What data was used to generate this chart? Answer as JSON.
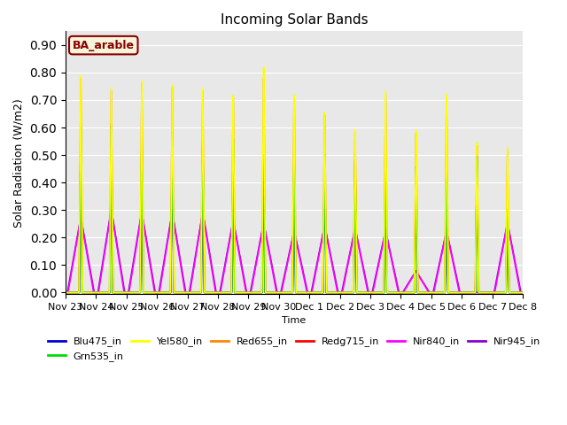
{
  "title": "Incoming Solar Bands",
  "xlabel": "Time",
  "ylabel": "Solar Radiation (W/m2)",
  "ylim": [
    -0.005,
    0.95
  ],
  "yticks": [
    0.0,
    0.1,
    0.2,
    0.3,
    0.4,
    0.5,
    0.6,
    0.7,
    0.8,
    0.9
  ],
  "bg_color": "#e8e8e8",
  "annotation_text": "BA_arable",
  "annotation_bg": "#f5f5dc",
  "annotation_border": "#8b0000",
  "annotation_text_color": "#8b0000",
  "x_tick_labels": [
    "Nov 23",
    "Nov 24",
    "Nov 25",
    "Nov 26",
    "Nov 27",
    "Nov 28",
    "Nov 29",
    "Nov 30",
    "Dec 1",
    "Dec 2",
    "Dec 3",
    "Dec 4",
    "Dec 5",
    "Dec 6",
    "Dec 7",
    "Dec 8"
  ],
  "series": [
    {
      "name": "Blu475_in",
      "color": "#0000cc",
      "lw": 1.2
    },
    {
      "name": "Grn535_in",
      "color": "#00dd00",
      "lw": 1.2
    },
    {
      "name": "Yel580_in",
      "color": "#ffff00",
      "lw": 1.2
    },
    {
      "name": "Red655_in",
      "color": "#ff8800",
      "lw": 1.2
    },
    {
      "name": "Redg715_in",
      "color": "#ff0000",
      "lw": 1.2
    },
    {
      "name": "Nir840_in",
      "color": "#ff00ff",
      "lw": 1.2
    },
    {
      "name": "Nir945_in",
      "color": "#8800cc",
      "lw": 1.2
    }
  ],
  "yel_peaks": [
    0.79,
    0.75,
    0.78,
    0.77,
    0.76,
    0.74,
    0.85,
    0.75,
    0.68,
    0.61,
    0.75,
    0.6,
    0.73,
    0.55,
    0.53
  ],
  "red655_peaks": [
    0.78,
    0.74,
    0.77,
    0.76,
    0.75,
    0.73,
    0.81,
    0.74,
    0.67,
    0.6,
    0.74,
    0.59,
    0.72,
    0.54,
    0.52
  ],
  "redg715_peaks": [
    0.57,
    0.56,
    0.56,
    0.56,
    0.55,
    0.53,
    0.54,
    0.52,
    0.51,
    0.5,
    0.51,
    0.47,
    0.5,
    0.47,
    0.34
  ],
  "blu_peaks": [
    0.62,
    0.62,
    0.61,
    0.6,
    0.59,
    0.58,
    0.55,
    0.53,
    0.53,
    0.5,
    0.51,
    0.47,
    0.5,
    0.5,
    0.35
  ],
  "grn_peaks": [
    0.61,
    0.61,
    0.6,
    0.59,
    0.58,
    0.57,
    0.54,
    0.52,
    0.52,
    0.49,
    0.5,
    0.46,
    0.49,
    0.49,
    0.34
  ],
  "nir840_peaks": [
    0.28,
    0.31,
    0.3,
    0.3,
    0.3,
    0.27,
    0.26,
    0.23,
    0.25,
    0.24,
    0.23,
    0.08,
    0.23,
    0.0,
    0.26
  ],
  "nir945_peaks": [
    0.28,
    0.31,
    0.3,
    0.3,
    0.3,
    0.27,
    0.26,
    0.23,
    0.25,
    0.24,
    0.23,
    0.08,
    0.23,
    0.0,
    0.26
  ],
  "total_days": 15,
  "pts_per_day": 200
}
